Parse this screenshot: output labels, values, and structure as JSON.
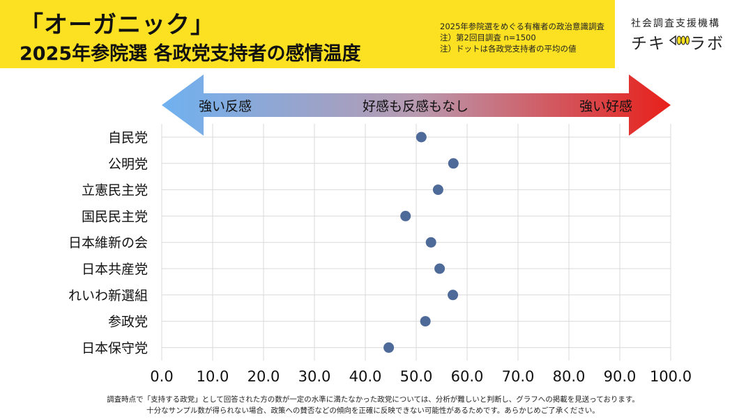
{
  "header": {
    "title_line1": "「オーガニック」",
    "title_line2": "2025年参院選 各政党支持者の感情温度",
    "notes": [
      "2025年参院選をめぐる有権者の政治意識調査",
      "注）第2回目調査 n=1500",
      "注）ドットは各政党支持者の平均の値"
    ],
    "org_name": "社会調査支援機構",
    "brand_a": "チキ",
    "brand_b": "ラボ",
    "brand_mark_icon": "megaphone-icon",
    "colors": {
      "banner": "#fbe122"
    }
  },
  "chart_data": {
    "type": "scatter",
    "orientation": "horizontal-dot",
    "categories": [
      "自民党",
      "公明党",
      "立憲民主党",
      "国民民主党",
      "日本維新の会",
      "日本共産党",
      "れいわ新選組",
      "参政党",
      "日本保守党"
    ],
    "values": [
      51.0,
      57.3,
      54.3,
      47.9,
      52.9,
      54.6,
      57.2,
      51.8,
      44.6
    ],
    "xlim": [
      0,
      100
    ],
    "xticks": [
      "0.0",
      "10.0",
      "20.0",
      "30.0",
      "40.0",
      "50.0",
      "60.0",
      "70.0",
      "80.0",
      "90.0",
      "100.0"
    ],
    "scale_labels": {
      "left": "強い反感",
      "center": "好感も反感もなし",
      "right": "強い好感"
    },
    "grid": true,
    "colors": {
      "dot": "#4e6a98",
      "arrow_left": "#6fb1f0",
      "arrow_right": "#e8201a",
      "grid": "#d9d9d9"
    }
  },
  "footer": {
    "line1": "調査時点で「支持する政党」として回答された方の数が一定の水準に満たなかった政党については、分析が難しいと判断し、グラフへの掲載を見送っております。",
    "line2": "十分なサンプル数が得られない場合、政策への賛否などの傾向を正確に反映できない可能性があるためです。あらかじめご了承ください。"
  }
}
